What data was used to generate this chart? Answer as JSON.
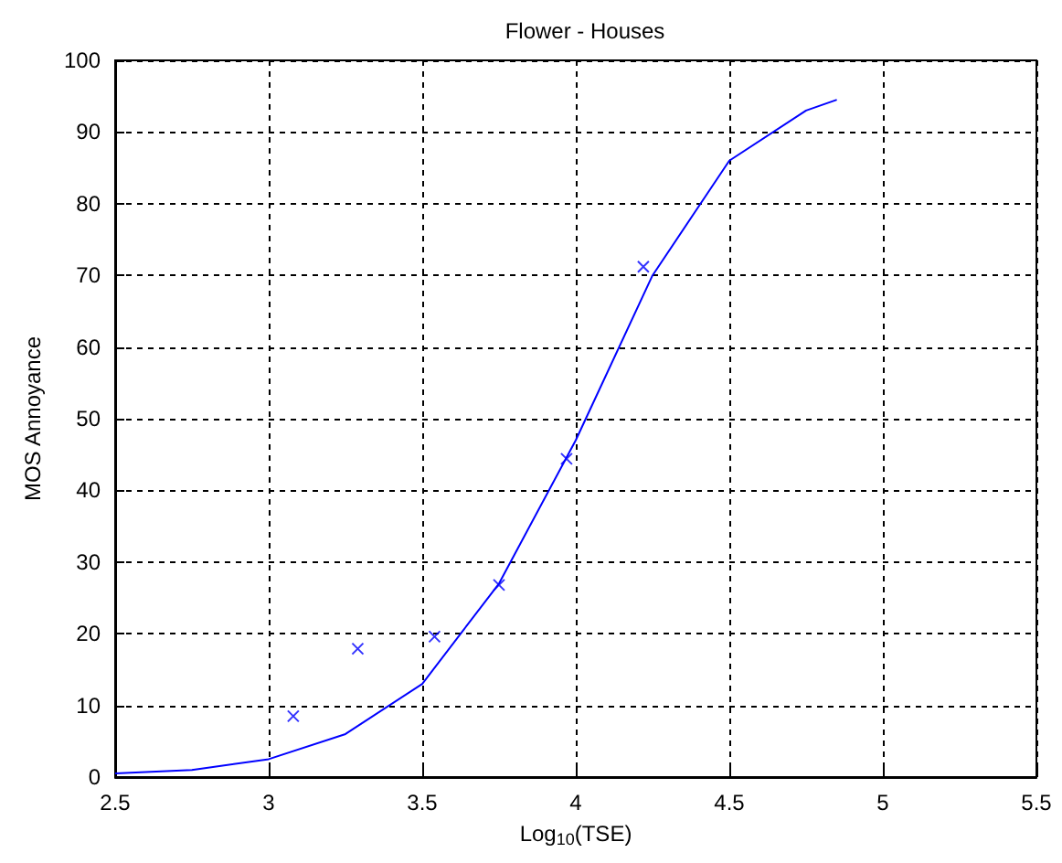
{
  "chart_data": {
    "type": "line",
    "title": "Flower - Houses",
    "xlabel": "Log$_{10}$(TSE)",
    "ylabel": "MOS Annoyance",
    "xlim": [
      2.5,
      5.5
    ],
    "xticks": [
      2.5,
      3,
      3.5,
      4,
      4.5,
      5,
      5.5
    ],
    "ylim": [
      0,
      100
    ],
    "yticks": [
      0,
      10,
      20,
      30,
      40,
      50,
      60,
      70,
      80,
      90,
      100
    ],
    "grid": true,
    "series": [
      {
        "marker": "none",
        "color": "#0000ff",
        "x": [
          2.5,
          2.75,
          3,
          3.25,
          3.5,
          3.75,
          4,
          4.25,
          4.5,
          4.75,
          4.85
        ],
        "values": [
          0.5,
          1,
          2.5,
          6,
          13,
          27,
          47,
          70,
          86,
          93,
          94.5
        ]
      },
      {
        "type": "scatter",
        "marker": "cross",
        "color": "#0000ff",
        "x": [
          3.08,
          3.29,
          3.54,
          3.75,
          3.97,
          4.22
        ],
        "values": [
          8.5,
          17.9,
          19.6,
          26.8,
          44.4,
          71.2
        ]
      }
    ]
  }
}
